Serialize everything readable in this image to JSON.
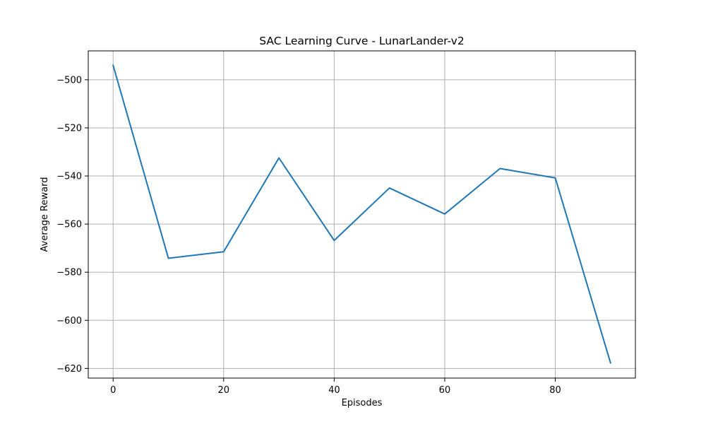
{
  "chart_data": {
    "type": "line",
    "title": "SAC Learning Curve - LunarLander-v2",
    "xlabel": "Episodes",
    "ylabel": "Average Reward",
    "xlim": [
      -4.5,
      94.5
    ],
    "ylim": [
      -624,
      -488
    ],
    "xticks": [
      0,
      20,
      40,
      60,
      80
    ],
    "yticks": [
      -620,
      -600,
      -580,
      -560,
      -540,
      -520,
      -500
    ],
    "grid": true,
    "line_color": "#1f77b4",
    "series": [
      {
        "x": [
          0,
          10,
          20,
          30,
          40,
          50,
          60,
          70,
          80,
          90
        ],
        "y": [
          -494,
          -574.2,
          -571.5,
          -532.5,
          -566.8,
          -545,
          -555.8,
          -536.9,
          -540.8,
          -617.7
        ]
      }
    ]
  }
}
